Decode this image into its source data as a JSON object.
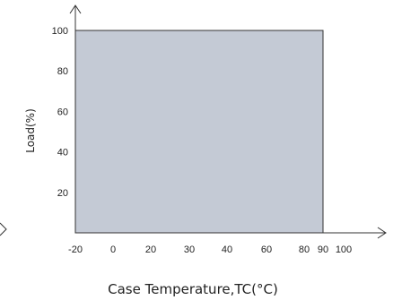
{
  "chart_data": {
    "type": "area",
    "title": "",
    "xlabel": "Case Temperature,TC(°C)",
    "ylabel": "Load(%)",
    "x_ticks": [
      "-20",
      "0",
      "20",
      "30",
      "40",
      "60",
      "80",
      "90",
      "100"
    ],
    "y_ticks": [
      "20",
      "40",
      "60",
      "80",
      "100"
    ],
    "xlim": [
      -20,
      100
    ],
    "ylim": [
      0,
      100
    ],
    "series": [
      {
        "x": [
          -20,
          90
        ],
        "y": [
          100,
          100
        ]
      }
    ],
    "grid": false,
    "colors": {
      "fill": "#c4cad5",
      "stroke": "#333333",
      "axis": "#333333",
      "text": "#222222"
    }
  }
}
